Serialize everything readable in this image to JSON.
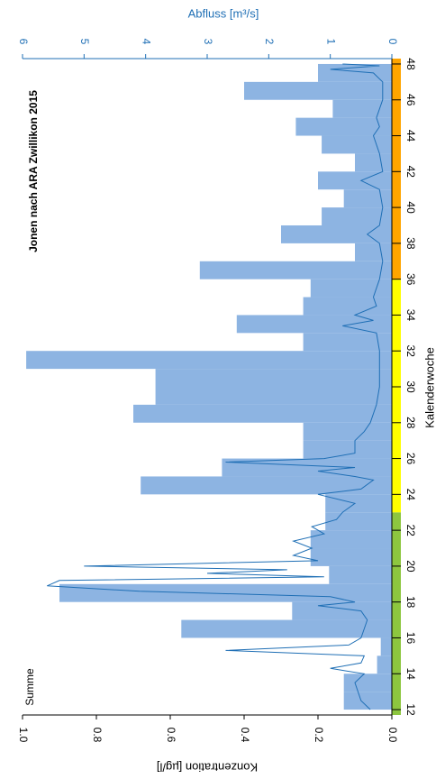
{
  "chart_data": {
    "type": "step-bar-line",
    "title": "Jonen nach ARA Zwillikon 2015",
    "annotation": "Summe",
    "xlabel": "Kalenderwoche",
    "ylabel": "Konzentration [µg/l]",
    "y2label": "Abfluss [m³/s]",
    "xlim": [
      11.7,
      48.3
    ],
    "xticks": [
      12,
      14,
      16,
      18,
      20,
      22,
      24,
      26,
      28,
      30,
      32,
      34,
      36,
      38,
      40,
      42,
      44,
      46,
      48
    ],
    "ylim": [
      0,
      1
    ],
    "yticks": [
      {
        "value": 0,
        "label": "0.0"
      },
      {
        "value": 0.2,
        "label": "0.2"
      },
      {
        "value": 0.4,
        "label": "0.4"
      },
      {
        "value": 0.6,
        "label": "0.6"
      },
      {
        "value": 0.8,
        "label": "0.8"
      },
      {
        "value": 1,
        "label": "1.0"
      }
    ],
    "y2lim": [
      0,
      6
    ],
    "y2ticks": [
      0,
      1,
      2,
      3,
      4,
      5,
      6
    ],
    "season_bands": [
      {
        "from": 11.7,
        "to": 23,
        "color": "#8dc63f"
      },
      {
        "from": 23,
        "to": 36,
        "color": "#ffff00"
      },
      {
        "from": 36,
        "to": 48.3,
        "color": "#ffa500"
      }
    ],
    "bars": {
      "color": "#8db4e2",
      "x": [
        12,
        13,
        14,
        15,
        16,
        17,
        18,
        19,
        20,
        21,
        22,
        23,
        24,
        25,
        26,
        27,
        28,
        29,
        30,
        31,
        32,
        33,
        34,
        35,
        36,
        37,
        38,
        39,
        40,
        41,
        42,
        43,
        44,
        45,
        46,
        47
      ],
      "values": [
        0.13,
        0.13,
        0.04,
        0.03,
        0.57,
        0.27,
        0.9,
        0.17,
        0.22,
        0.22,
        0.18,
        0.18,
        0.68,
        0.46,
        0.24,
        0.24,
        0.7,
        0.64,
        0.64,
        0.99,
        0.24,
        0.42,
        0.24,
        0.22,
        0.52,
        0.1,
        0.3,
        0.19,
        0.13,
        0.2,
        0.1,
        0.19,
        0.26,
        0.16,
        0.4,
        0.2
      ]
    },
    "line": {
      "color": "#1f6fb5",
      "axis": "y2",
      "x": [
        12,
        12.5,
        13,
        13.5,
        14,
        14.3,
        14.6,
        15,
        15.3,
        15.6,
        16,
        16.5,
        17,
        17.5,
        17.8,
        18,
        18.3,
        18.6,
        18.9,
        19.2,
        19.4,
        19.6,
        19.8,
        20,
        20.3,
        20.6,
        21,
        21.4,
        21.8,
        22.2,
        22.6,
        23,
        23.5,
        24,
        24.3,
        24.8,
        25,
        25.3,
        25.5,
        25.8,
        26,
        26.3,
        27,
        27.5,
        28,
        29,
        30,
        31,
        32,
        33,
        33.4,
        33.7,
        34,
        34.5,
        35,
        36,
        37,
        38,
        38.5,
        39,
        40,
        41,
        41.5,
        42,
        43,
        44,
        44.5,
        45,
        46,
        47,
        47.5,
        47.7,
        47.9,
        48
      ],
      "values": [
        0.35,
        0.5,
        0.55,
        0.6,
        0.45,
        1.0,
        0.5,
        0.45,
        2.7,
        0.7,
        0.5,
        0.45,
        0.4,
        0.5,
        1.2,
        0.6,
        1.0,
        4.1,
        5.6,
        5.4,
        1.1,
        3.0,
        1.7,
        5.0,
        1.2,
        1.6,
        1.3,
        1.6,
        1.1,
        1.3,
        0.9,
        0.8,
        0.6,
        1.2,
        0.5,
        0.3,
        0.6,
        1.2,
        0.6,
        2.7,
        1.1,
        0.6,
        0.6,
        0.45,
        0.35,
        0.25,
        0.2,
        0.2,
        0.2,
        0.25,
        0.8,
        0.3,
        0.6,
        0.25,
        0.3,
        0.2,
        0.15,
        0.2,
        0.4,
        0.2,
        0.15,
        0.2,
        0.5,
        0.15,
        0.2,
        0.3,
        0.2,
        0.25,
        0.15,
        0.15,
        0.3,
        1.0,
        0.2,
        0.8
      ]
    }
  }
}
